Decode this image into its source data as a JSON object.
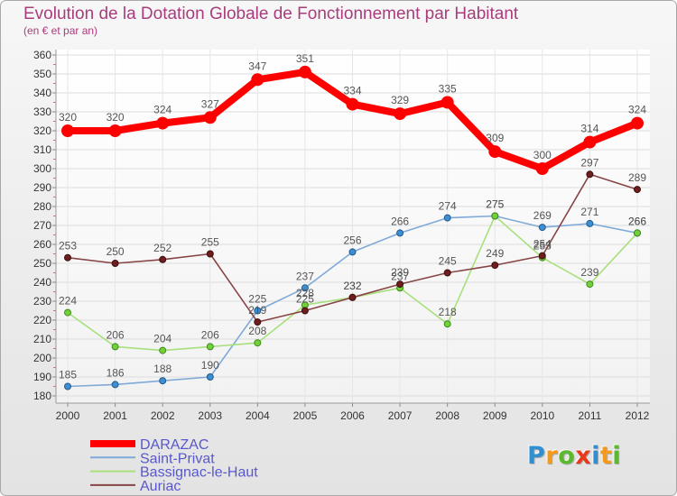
{
  "chart_data": {
    "type": "line",
    "title": "Evolution de la Dotation Globale de Fonctionnement par Habitant",
    "subtitle": "(en € et par an)",
    "x": [
      2000,
      2001,
      2002,
      2003,
      2004,
      2005,
      2006,
      2007,
      2008,
      2009,
      2010,
      2011,
      2012
    ],
    "ylim": [
      180,
      360
    ],
    "yticks": [
      180,
      190,
      200,
      210,
      220,
      230,
      240,
      250,
      260,
      270,
      280,
      290,
      300,
      310,
      320,
      330,
      340,
      350,
      360
    ],
    "grid": true,
    "legend_position": "bottom-left",
    "series": [
      {
        "name": "DARAZAC",
        "color": "#ff0000",
        "marker_color": "#ff0000",
        "marker_stroke": "#ff0000",
        "values": [
          320,
          320,
          324,
          327,
          347,
          351,
          334,
          329,
          335,
          309,
          300,
          314,
          324
        ]
      },
      {
        "name": "Saint-Privat",
        "color": "#7faad8",
        "marker_color": "#3d8fd4",
        "marker_stroke": "#245a8a",
        "values": [
          185,
          186,
          188,
          190,
          225,
          237,
          256,
          266,
          274,
          275,
          269,
          271,
          266
        ]
      },
      {
        "name": "Bassignac-le-Haut",
        "color": "#a8e07c",
        "marker_color": "#72d03c",
        "marker_stroke": "#3f8a1c",
        "values": [
          224,
          206,
          204,
          206,
          208,
          228,
          232,
          237,
          218,
          275,
          253,
          239,
          266
        ]
      },
      {
        "name": "Auriac",
        "color": "#874545",
        "marker_color": "#6e1e1e",
        "marker_stroke": "#3e0e0e",
        "values": [
          253,
          250,
          252,
          255,
          219,
          225,
          232,
          239,
          245,
          249,
          254,
          297,
          289
        ]
      }
    ]
  },
  "colors": {
    "title": "#a83c7c",
    "legend_text": "#5858cc"
  },
  "logo": {
    "text": "Proxiti",
    "letter_colors": [
      "#2f8fd0",
      "#f39a1e",
      "#5cb82e",
      "#e8391c",
      "#2f8fd0",
      "#f39a1e",
      "#5cb82e"
    ]
  }
}
